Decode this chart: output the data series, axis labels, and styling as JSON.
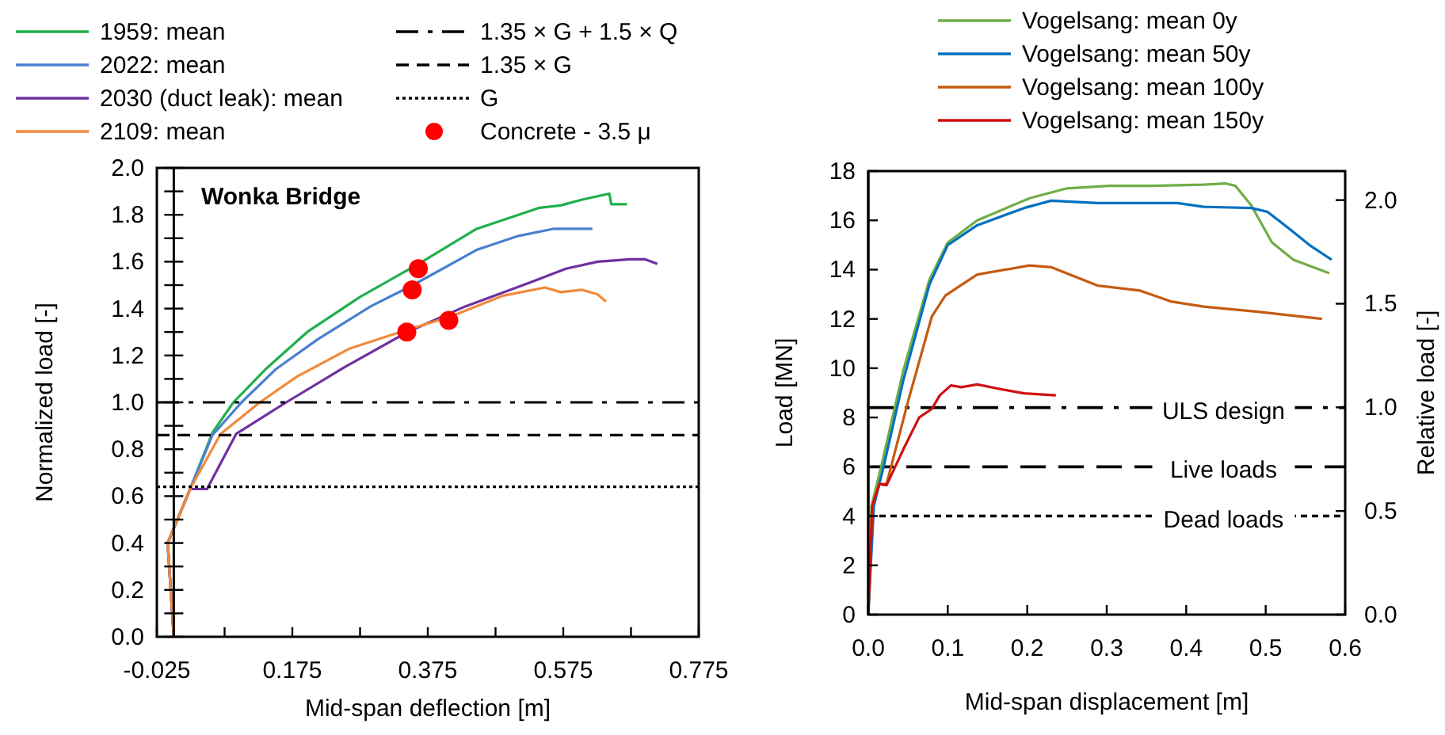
{
  "chart_data": [
    {
      "type": "line",
      "xlabel": "Mid-span deflection [m]",
      "ylabel": "Normalized load [-]",
      "annotations": [
        "Wonka Bridge"
      ],
      "legend": "top",
      "xlim": [
        -0.025,
        0.775
      ],
      "xticks": [
        -0.025,
        {
          "value": 0.075,
          "label": null
        },
        0.175,
        {
          "value": 0.275,
          "label": null
        },
        0.375,
        {
          "value": 0.475,
          "label": null
        },
        0.575,
        {
          "value": 0.675,
          "label": null
        },
        0.775
      ],
      "ylim": [
        0,
        2
      ],
      "yticks": [
        {
          "value": 0,
          "label": "0.0"
        },
        {
          "value": 0.1,
          "label": null
        },
        0.2,
        {
          "value": 0.3,
          "label": null
        },
        0.4,
        {
          "value": 0.5,
          "label": null
        },
        0.6,
        {
          "value": 0.7,
          "label": null
        },
        0.8,
        {
          "value": 0.9,
          "label": null
        },
        {
          "value": 1,
          "label": "1.0"
        },
        {
          "value": 1.1,
          "label": null
        },
        1.2,
        {
          "value": 1.3,
          "label": null
        },
        1.4,
        {
          "value": 1.5,
          "label": null
        },
        1.6,
        {
          "value": 1.7,
          "label": null
        },
        1.8,
        {
          "value": 1.9,
          "label": null
        },
        {
          "value": 2,
          "label": "2.0"
        }
      ],
      "series": [
        {
          "name": "1959: mean",
          "color": "#1fb04b",
          "x": [
            0,
            -0.009,
            0.024,
            0.057,
            0.088,
            0.135,
            0.197,
            0.275,
            0.361,
            0.447,
            0.54,
            0.571,
            0.603,
            0.643,
            0.646,
            0.669
          ],
          "values": [
            0,
            0.4,
            0.63,
            0.87,
            1.0,
            1.14,
            1.3,
            1.45,
            1.59,
            1.74,
            1.83,
            1.84,
            1.865,
            1.89,
            1.845,
            1.845
          ]
        },
        {
          "name": "2022: mean",
          "color": "#4a7fd0",
          "x": [
            0,
            -0.009,
            0.024,
            0.057,
            0.1,
            0.15,
            0.213,
            0.291,
            0.353,
            0.447,
            0.509,
            0.56,
            0.618
          ],
          "values": [
            0,
            0.4,
            0.63,
            0.86,
            1.0,
            1.14,
            1.27,
            1.41,
            1.5,
            1.65,
            1.71,
            1.74,
            1.74
          ]
        },
        {
          "name": "2030 (duct leak): mean",
          "color": "#7030a0",
          "x": [
            0,
            -0.009,
            0.024,
            0.049,
            0.092,
            0.166,
            0.252,
            0.345,
            0.431,
            0.525,
            0.579,
            0.626,
            0.673,
            0.696,
            0.714
          ],
          "values": [
            0,
            0.4,
            0.63,
            0.63,
            0.865,
            1.0,
            1.15,
            1.3,
            1.41,
            1.51,
            1.57,
            1.6,
            1.61,
            1.61,
            1.59
          ]
        },
        {
          "name": "2109: mean",
          "color": "#f08a3c",
          "x": [
            0,
            -0.009,
            0.024,
            0.069,
            0.127,
            0.182,
            0.26,
            0.345,
            0.408,
            0.486,
            0.548,
            0.571,
            0.603,
            0.626,
            0.638
          ],
          "values": [
            0,
            0.4,
            0.63,
            0.865,
            1.0,
            1.11,
            1.23,
            1.31,
            1.365,
            1.455,
            1.49,
            1.47,
            1.48,
            1.46,
            1.43
          ]
        },
        {
          "name": "1.35 × G + 1.5 × Q",
          "color": "#000000",
          "line_style": "dashdot",
          "x": [
            -0.025,
            0.775
          ],
          "values": [
            1.0,
            1.0
          ]
        },
        {
          "name": "1.35 × G",
          "color": "#000000",
          "line_style": "dashed",
          "x": [
            -0.025,
            0.775
          ],
          "values": [
            0.86,
            0.86
          ]
        },
        {
          "name": "G",
          "color": "#000000",
          "line_style": "dotted",
          "x": [
            -0.025,
            0.775
          ],
          "values": [
            0.64,
            0.64
          ]
        },
        {
          "name": "Concrete  - 3.5 μ",
          "type": "scatter",
          "marker": "circle",
          "color": "#ff0000",
          "x": [
            0.361,
            0.352,
            0.344,
            0.406
          ],
          "values": [
            1.57,
            1.48,
            1.3,
            1.35
          ]
        }
      ]
    },
    {
      "type": "line",
      "xlabel": "Mid-span displacement [m]",
      "ylabel": "Load [MN]",
      "y2label": "Relative load [-]",
      "legend": "top",
      "xlim": [
        0,
        0.6
      ],
      "xticks": [
        {
          "value": 0,
          "label": "0.0"
        },
        0.1,
        0.2,
        0.3,
        0.4,
        0.5,
        0.6
      ],
      "ylim": [
        0,
        18
      ],
      "yticks": [
        0,
        2,
        4,
        6,
        8,
        10,
        12,
        14,
        16,
        18
      ],
      "y2lim": [
        0,
        2.14
      ],
      "y2ticks": [
        {
          "value": 0,
          "label": "0.0"
        },
        0.5,
        {
          "value": 1,
          "label": "1.0"
        },
        1.5,
        {
          "value": 2,
          "label": "2.0"
        }
      ],
      "ref_lines": [
        {
          "axis": "y",
          "value": 8.4,
          "label": "ULS design",
          "line_style": "dashdot"
        },
        {
          "axis": "y",
          "value": 6.0,
          "label": "Live loads",
          "line_style": "dashed"
        },
        {
          "axis": "y",
          "value": 4.0,
          "label": "Dead loads",
          "line_style": "dotted"
        }
      ],
      "series": [
        {
          "name": "Vogelsang: mean 0y",
          "color": "#70ad47",
          "x": [
            0,
            0.004,
            0.017,
            0.044,
            0.077,
            0.1,
            0.137,
            0.203,
            0.25,
            0.303,
            0.356,
            0.422,
            0.449,
            0.462,
            0.482,
            0.508,
            0.535,
            0.58
          ],
          "values": [
            0,
            4.4,
            6.1,
            9.9,
            13.6,
            15.1,
            16.0,
            16.9,
            17.3,
            17.4,
            17.4,
            17.45,
            17.5,
            17.4,
            16.6,
            15.1,
            14.4,
            13.85
          ]
        },
        {
          "name": "Vogelsang: mean 50y",
          "color": "#0070c0",
          "x": [
            0,
            0.007,
            0.02,
            0.044,
            0.077,
            0.1,
            0.137,
            0.196,
            0.23,
            0.289,
            0.389,
            0.422,
            0.482,
            0.502,
            0.528,
            0.555,
            0.583
          ],
          "values": [
            0,
            4.4,
            6.1,
            9.5,
            13.4,
            15.0,
            15.8,
            16.5,
            16.8,
            16.7,
            16.7,
            16.55,
            16.5,
            16.35,
            15.7,
            15.0,
            14.4
          ]
        },
        {
          "name": "Vogelsang: mean 100y",
          "color": "#c55a11",
          "x": [
            0,
            0.005,
            0.014,
            0.023,
            0.05,
            0.08,
            0.097,
            0.137,
            0.203,
            0.23,
            0.289,
            0.342,
            0.382,
            0.422,
            0.488,
            0.571
          ],
          "values": [
            0,
            4.4,
            5.3,
            5.3,
            8.65,
            12.1,
            12.95,
            13.8,
            14.17,
            14.1,
            13.35,
            13.15,
            12.7,
            12.5,
            12.3,
            12.0
          ]
        },
        {
          "name": "Vogelsang: mean 150y",
          "color": "#d01010",
          "x": [
            0,
            0.005,
            0.014,
            0.023,
            0.044,
            0.064,
            0.08,
            0.09,
            0.104,
            0.117,
            0.137,
            0.17,
            0.196,
            0.236
          ],
          "values": [
            0,
            4.4,
            5.3,
            5.25,
            6.7,
            8.0,
            8.35,
            8.9,
            9.3,
            9.23,
            9.34,
            9.13,
            8.98,
            8.9
          ]
        }
      ]
    }
  ]
}
